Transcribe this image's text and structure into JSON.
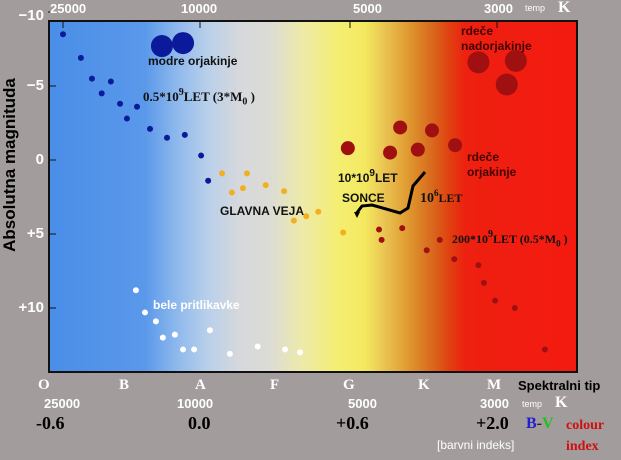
{
  "chart_data": {
    "type": "scatter",
    "title": "",
    "ylabel": "Absolutna magnituda",
    "ylim": [
      -10,
      14.5
    ],
    "y_ticks": [
      "−10",
      "−5",
      "0",
      "+5",
      "+10"
    ],
    "y_tick_values": [
      -10,
      -5,
      0,
      5,
      10
    ],
    "top_temp_ticks": [
      "25000",
      "10000",
      "5000",
      "3000"
    ],
    "top_temp_values": [
      25000,
      10000,
      5000,
      3000
    ],
    "temp_unit_small": "temp",
    "temp_unit": "K",
    "spectral_types": [
      "O",
      "B",
      "A",
      "F",
      "G",
      "K",
      "M"
    ],
    "spectral_label": "Spektralni tip",
    "bottom_temp_ticks": [
      "25000",
      "10000",
      "5000",
      "3000"
    ],
    "bv_ticks": [
      "-0.6",
      "0.0",
      "+0.6",
      "+2.0"
    ],
    "bv_label_b": "B",
    "bv_label_dash": "-",
    "bv_label_v": "V",
    "bv_note": "[barvni indeks]",
    "colour_index": [
      "colour",
      "index"
    ],
    "annotations": {
      "blue_giants": "modre orjakinje",
      "blue_age": "0.5*10",
      "blue_age_exp": "9",
      "blue_age_rest": "LET (3*M",
      "blue_age_sub": "0",
      "blue_age_end": ")",
      "main_sequence": "GLAVNA VEJA",
      "sun_age": "10*10",
      "sun_age_exp": "9",
      "sun_age_rest": "LET",
      "sun": "SONCE",
      "giant_age": "10",
      "giant_age_exp": "6",
      "giant_age_rest": "LET",
      "red_age": "200*10",
      "red_age_exp": "9",
      "red_age_rest": "LET (0.5*M",
      "red_age_sub": "0",
      "red_age_end": ")",
      "red_giants": [
        "rdeče",
        "orjakinje"
      ],
      "red_supergiants": [
        "rdeče",
        "nadorjakinje"
      ],
      "white_dwarfs": "bele pritlikavke"
    },
    "colors": {
      "blue": "#0a1a9a",
      "yellow": "#f0b020",
      "red": "#a01010",
      "white": "#ffffff"
    },
    "series": [
      {
        "name": "blue",
        "color": "#0a1a9a",
        "points": [
          [
            25000,
            -8.5,
            "s"
          ],
          [
            22180,
            -6.9,
            "s"
          ],
          [
            20600,
            -5.5,
            "s"
          ],
          [
            18150,
            -5.3,
            "s"
          ],
          [
            19300,
            -4.5,
            "s"
          ],
          [
            17070,
            -3.8,
            "s"
          ],
          [
            16300,
            -2.8,
            "s"
          ],
          [
            15240,
            -3.6,
            "s"
          ],
          [
            13970,
            -2.1,
            "s"
          ],
          [
            12470,
            -1.5,
            "s"
          ],
          [
            11070,
            -1.7,
            "s"
          ],
          [
            9950,
            -0.3,
            "s"
          ],
          [
            9630,
            1.4,
            "s"
          ],
          [
            12900,
            -7.7,
            "l"
          ],
          [
            11200,
            -7.9,
            "l"
          ]
        ]
      },
      {
        "name": "yellow",
        "color": "#f0b020",
        "points": [
          [
            9030,
            0.9,
            "s"
          ],
          [
            8630,
            2.2,
            "s"
          ],
          [
            8200,
            1.9,
            "s"
          ],
          [
            8050,
            0.9,
            "s"
          ],
          [
            7380,
            1.7,
            "s"
          ],
          [
            6780,
            2.1,
            "s"
          ],
          [
            6480,
            4.1,
            "s"
          ],
          [
            6120,
            3.8,
            "s"
          ],
          [
            5790,
            3.5,
            "s"
          ],
          [
            5160,
            4.9,
            "s"
          ]
        ]
      },
      {
        "name": "red-giants",
        "color": "#a01010",
        "points": [
          [
            5050,
            -0.8,
            "m"
          ],
          [
            4200,
            -2.2,
            "m"
          ],
          [
            4350,
            -0.5,
            "m"
          ],
          [
            3950,
            -0.7,
            "m"
          ],
          [
            3760,
            -2.0,
            "m"
          ],
          [
            3470,
            -1.0,
            "m"
          ],
          [
            3200,
            -6.6,
            "l"
          ],
          [
            2810,
            -6.7,
            "l"
          ],
          [
            2900,
            -5.1,
            "l"
          ]
        ]
      },
      {
        "name": "red-dwarfs",
        "color": "#a01010",
        "points": [
          [
            4520,
            4.7,
            "s"
          ],
          [
            4480,
            5.4,
            "s"
          ],
          [
            4170,
            4.6,
            "s"
          ],
          [
            3660,
            5.4,
            "s"
          ],
          [
            3830,
            6.1,
            "s"
          ],
          [
            3480,
            6.7,
            "s"
          ],
          [
            3200,
            7.1,
            "s"
          ],
          [
            3140,
            8.3,
            "s"
          ],
          [
            3020,
            9.5,
            "s"
          ],
          [
            2820,
            10.0,
            "s"
          ],
          [
            2540,
            12.8,
            "s"
          ]
        ]
      },
      {
        "name": "white-dwarfs",
        "color": "#ffffff",
        "points": [
          [
            15350,
            8.8,
            "s"
          ],
          [
            14450,
            10.3,
            "s"
          ],
          [
            13430,
            10.9,
            "s"
          ],
          [
            12820,
            12.0,
            "s"
          ],
          [
            11830,
            11.8,
            "s"
          ],
          [
            11200,
            12.8,
            "s"
          ],
          [
            10400,
            12.8,
            "s"
          ],
          [
            9550,
            11.5,
            "s"
          ],
          [
            8710,
            13.1,
            "s"
          ],
          [
            7660,
            12.6,
            "s"
          ],
          [
            6750,
            12.8,
            "s"
          ],
          [
            6300,
            13.0,
            "s"
          ]
        ]
      }
    ]
  }
}
